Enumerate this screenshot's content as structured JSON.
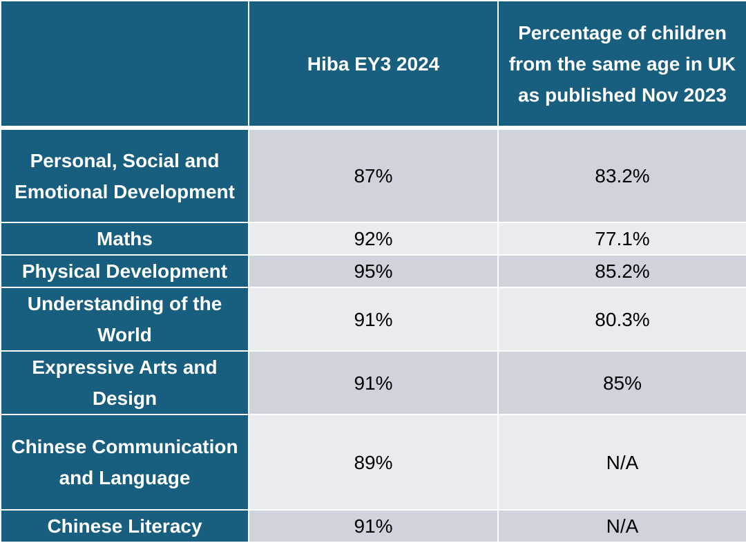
{
  "table": {
    "headers": [
      "",
      "Hiba EY3 2024",
      "Percentage of children from the same age in UK as published Nov 2023"
    ],
    "rows": [
      {
        "label": "Personal, Social and Emotional Development",
        "hiba": "87%",
        "uk": "83.2%"
      },
      {
        "label": "Maths",
        "hiba": "92%",
        "uk": "77.1%"
      },
      {
        "label": "Physical Development",
        "hiba": "95%",
        "uk": "85.2%"
      },
      {
        "label": "Understanding of the World",
        "hiba": "91%",
        "uk": "80.3%"
      },
      {
        "label": "Expressive Arts and Design",
        "hiba": "91%",
        "uk": "85%"
      },
      {
        "label": "Chinese Communication and Language",
        "hiba": "89%",
        "uk": "N/A"
      },
      {
        "label": "Chinese Literacy",
        "hiba": "91%",
        "uk": "N/A"
      }
    ]
  }
}
